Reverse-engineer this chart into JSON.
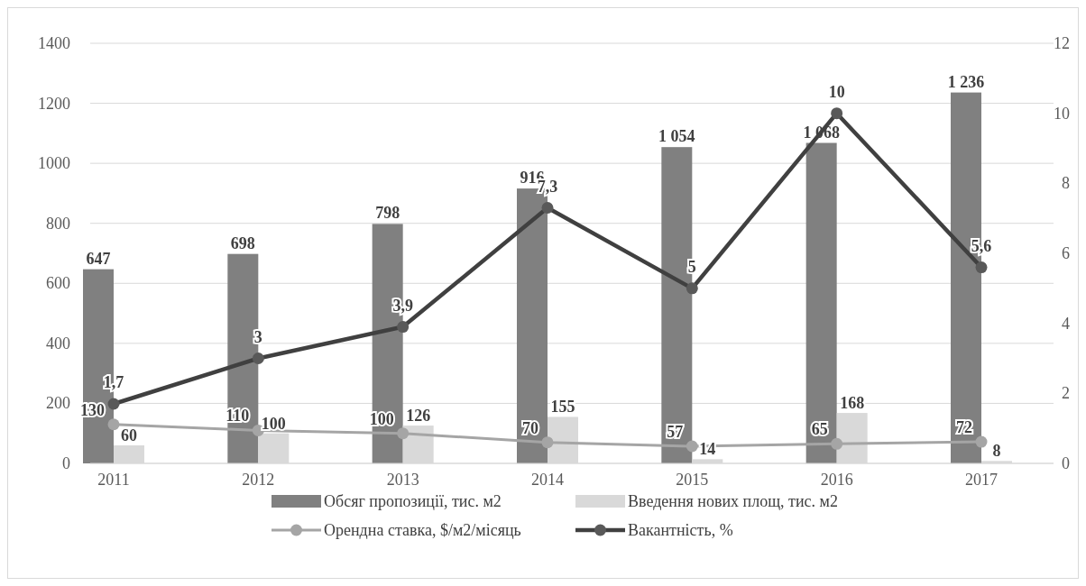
{
  "chart_data": {
    "type": "bar",
    "categories": [
      "2011",
      "2012",
      "2013",
      "2014",
      "2015",
      "2016",
      "2017"
    ],
    "series": [
      {
        "name": "Обсяг пропозиції, тис. м2",
        "color": "#808080",
        "values": [
          647,
          698,
          798,
          916,
          1054,
          1068,
          1236
        ],
        "value_labels": [
          "647",
          "698",
          "798",
          "916",
          "1 054",
          "1 068",
          "1 236"
        ]
      },
      {
        "name": "Введення нових площ, тис. м2",
        "color": "#d9d9d9",
        "values": [
          60,
          100,
          126,
          155,
          14,
          168,
          8
        ],
        "value_labels": [
          "60",
          "100",
          "126",
          "155",
          "14",
          "168",
          "8"
        ]
      },
      {
        "type": "line",
        "name": "Орендна ставка, $/м2/місяць",
        "color": "#a5a5a5",
        "values": [
          130,
          110,
          100,
          70,
          57,
          65,
          72
        ],
        "value_labels": [
          "130",
          "110",
          "100",
          "70",
          "57",
          "65",
          "72"
        ]
      },
      {
        "type": "line",
        "axis": "y2",
        "name": "Вакантність, %",
        "color": "#404040",
        "values": [
          1.7,
          3,
          3.9,
          7.3,
          5,
          10,
          5.6
        ],
        "value_labels": [
          "1,7",
          "3",
          "3,9",
          "7,3",
          "5",
          "10",
          "5,6"
        ]
      }
    ],
    "ylim": [
      0,
      1400
    ],
    "yticks": [
      0,
      200,
      400,
      600,
      800,
      1000,
      1200,
      1400
    ],
    "y2lim": [
      0,
      12
    ],
    "y2ticks": [
      0,
      2,
      4,
      6,
      8,
      10,
      12
    ],
    "grid": "y",
    "legend": "bottom",
    "marker": "circle"
  }
}
